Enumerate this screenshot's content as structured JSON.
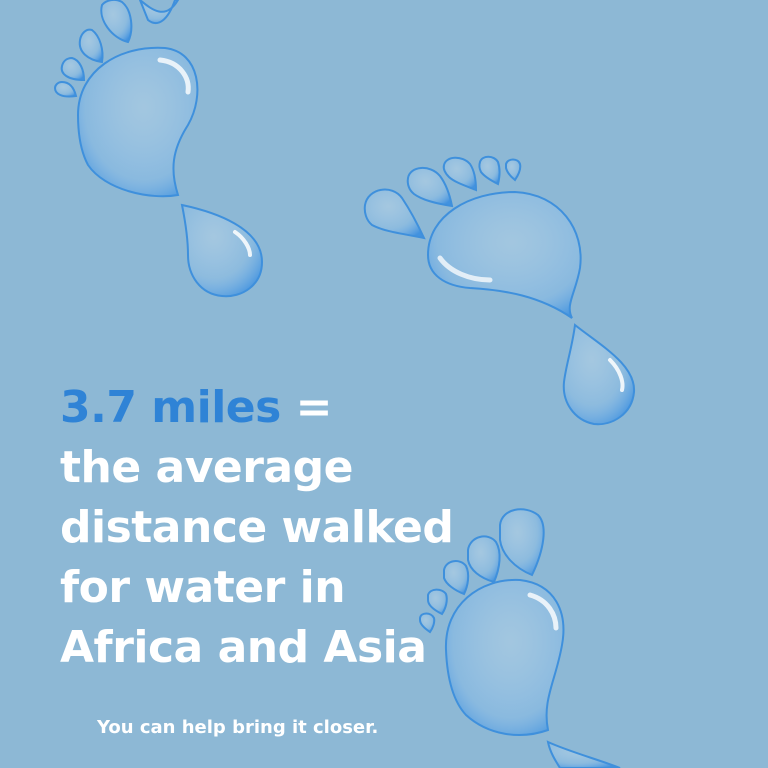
{
  "headline": {
    "highlight": "3.7 miles",
    "equals": " =",
    "lines": [
      "the average",
      "distance walked",
      "for water in",
      "Africa and Asia"
    ]
  },
  "tagline": "You can help bring it closer.",
  "colors": {
    "background": "#8db8d5",
    "accent": "#2f83d6",
    "text": "#ffffff",
    "drop": "#5a9ed6"
  },
  "icons": [
    "water-footprint-icon",
    "water-drop-icon"
  ]
}
